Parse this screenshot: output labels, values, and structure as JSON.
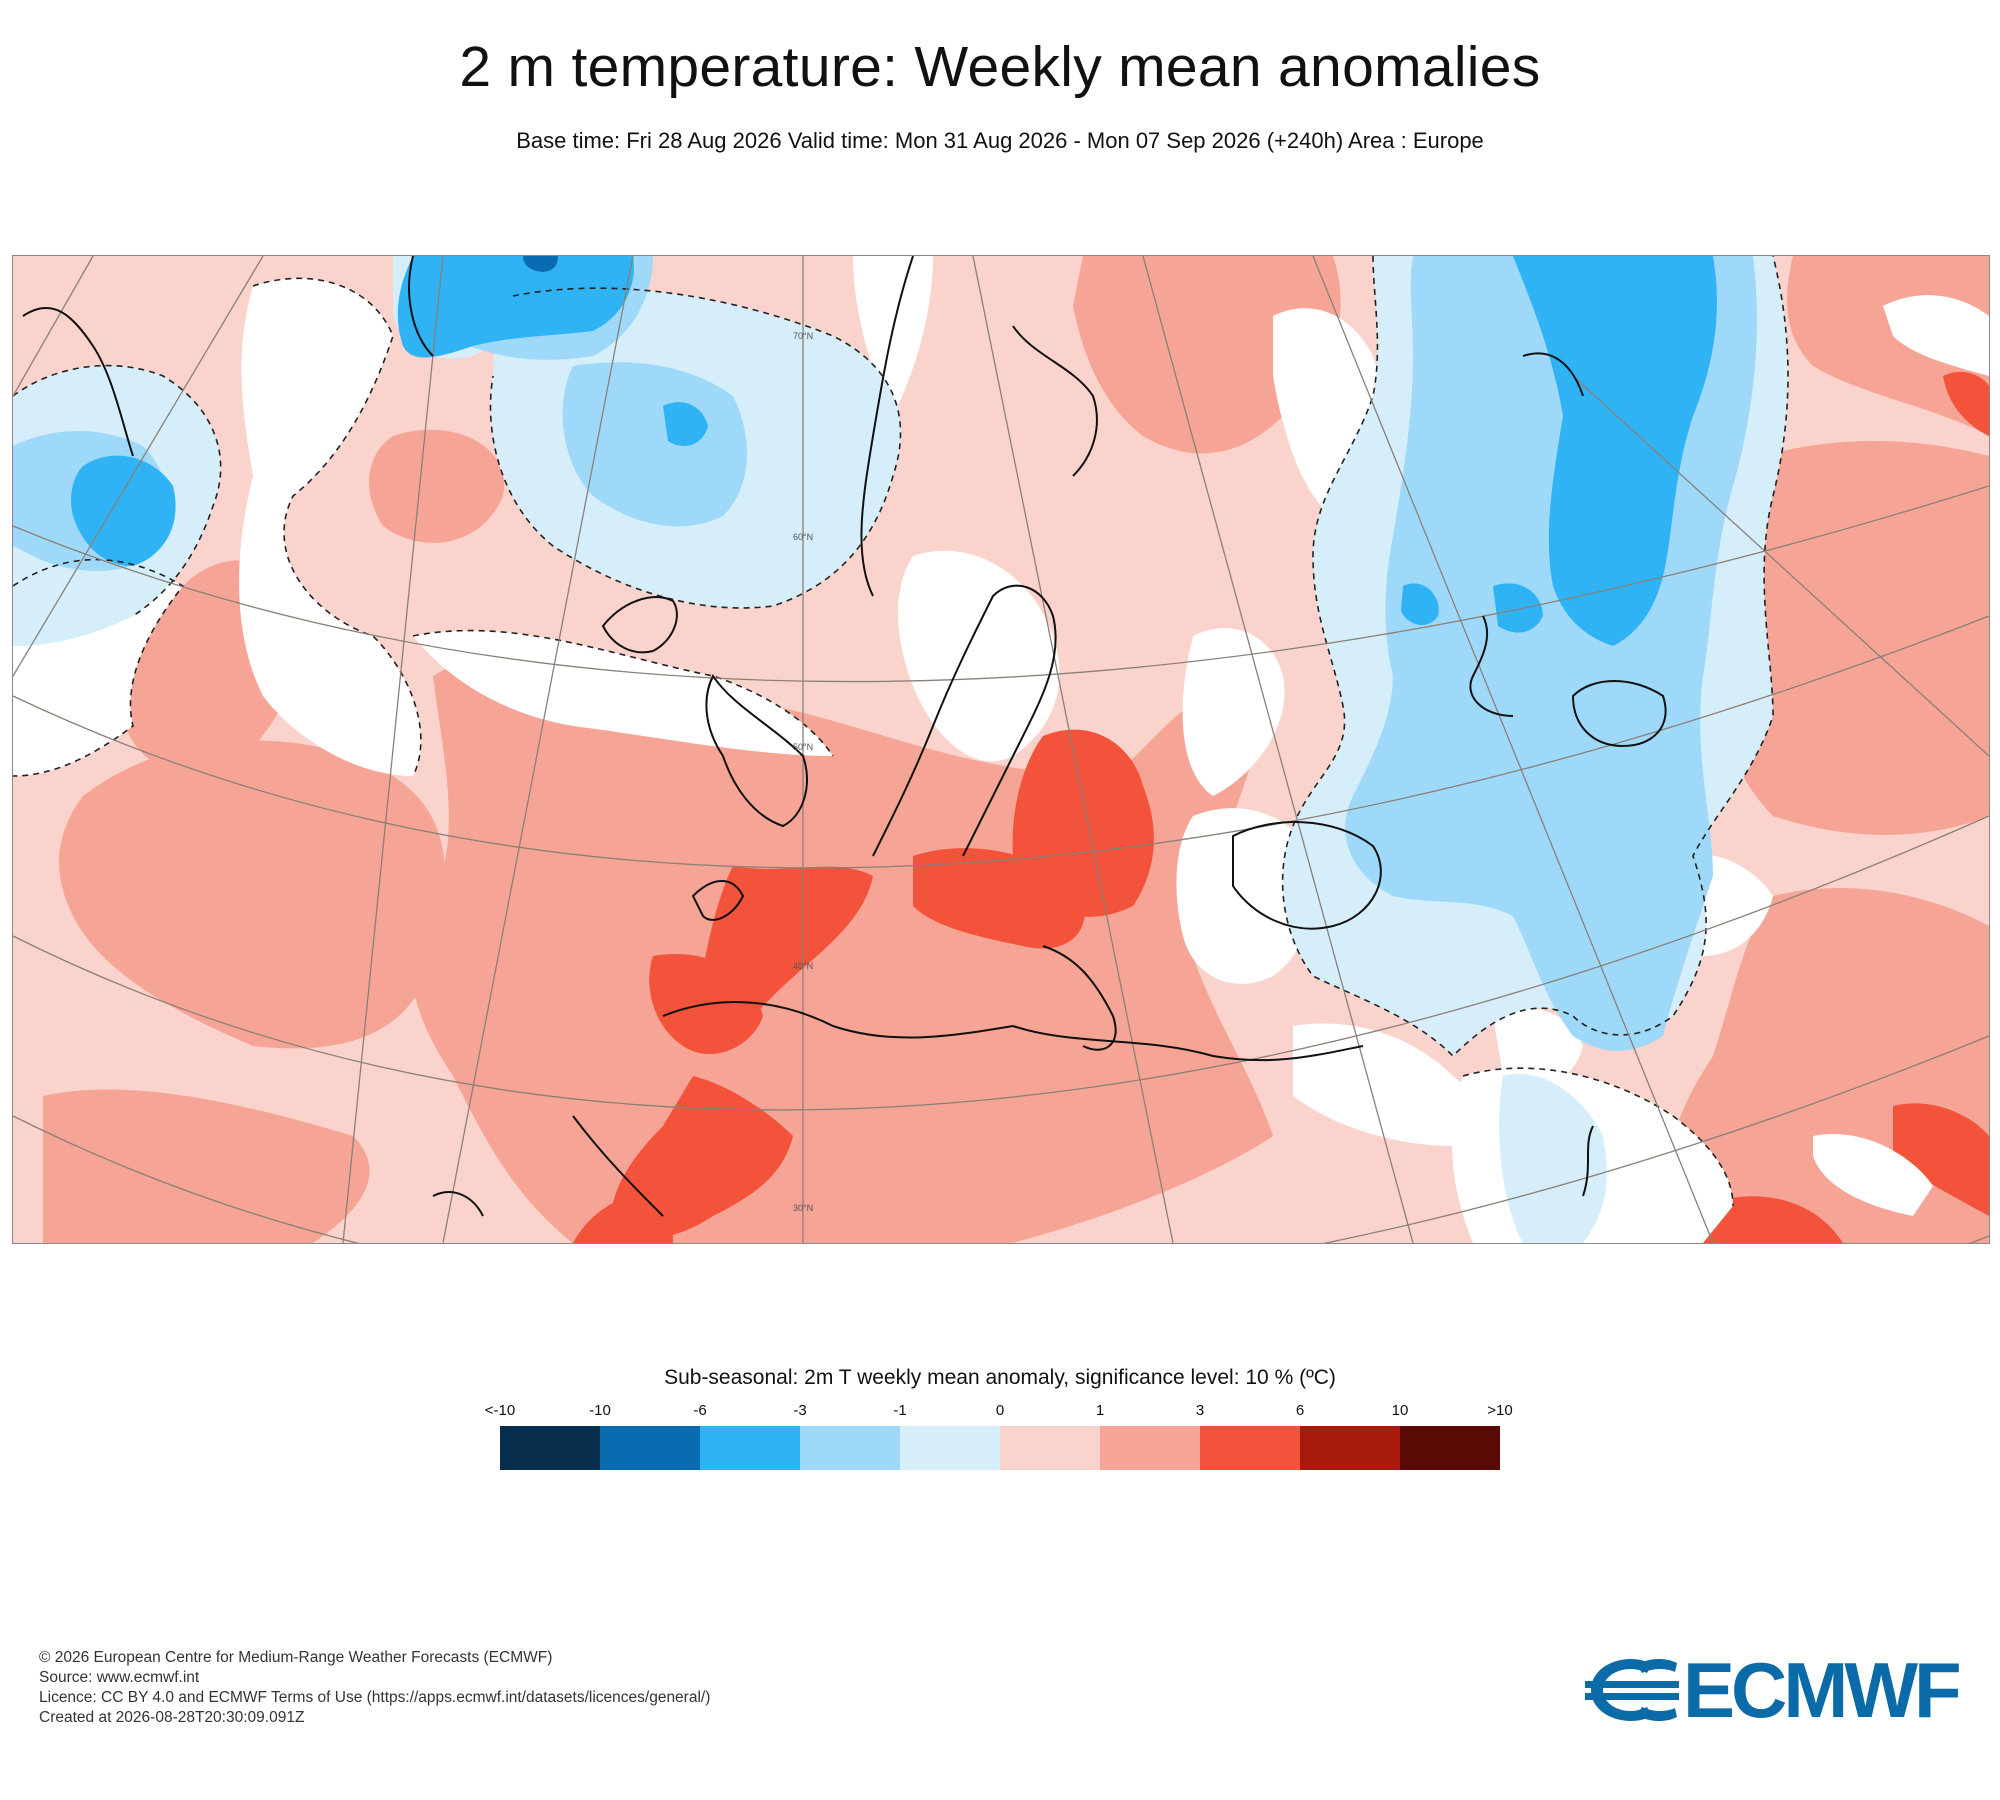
{
  "header": {
    "title": "2 m temperature: Weekly mean anomalies",
    "subtitle": "Base time: Fri 28 Aug 2026 Valid time: Mon 31 Aug 2026 - Mon 07 Sep 2026 (+240h) Area : Europe"
  },
  "map": {
    "lat_labels": [
      "70°N",
      "60°N",
      "50°N",
      "40°N",
      "30°N"
    ],
    "colors": {
      "lt_minus10": "#072f4d",
      "minus10_to_minus6": "#0b6bb0",
      "minus6_to_minus3": "#2fb3f5",
      "minus3_to_minus1": "#9fd9fa",
      "minus1_to_0": "#d6eefa",
      "zero_to_1": "#fbd3cd",
      "one_to_3": "#f6a495",
      "three_to_6": "#f2533a",
      "six_to_10": "#a71a0c",
      "gt_10": "#5a0a04",
      "non_significant": "#ffffff"
    }
  },
  "legend": {
    "title": "Sub-seasonal: 2m T weekly mean anomaly, significance level: 10 % (ºC)",
    "ticks": [
      "<-10",
      "-10",
      "-6",
      "-3",
      "-1",
      "0",
      "1",
      "3",
      "6",
      "10",
      ">10"
    ],
    "colors": [
      "#072f4d",
      "#0b6bb0",
      "#2fb3f5",
      "#9fd9fa",
      "#d6eefa",
      "#fbd3cd",
      "#f6a495",
      "#f2533a",
      "#a71a0c",
      "#5a0a04"
    ]
  },
  "footer": {
    "copyright": "© 2026 European Centre for Medium-Range Weather Forecasts (ECMWF)",
    "source": "Source: www.ecmwf.int",
    "licence": "Licence: CC BY 4.0 and ECMWF Terms of Use (https://apps.ecmwf.int/datasets/licences/general/)",
    "created": "Created at 2026-08-28T20:30:09.091Z"
  },
  "logo": {
    "text": "ECMWF",
    "color": "#0b6aa8"
  }
}
